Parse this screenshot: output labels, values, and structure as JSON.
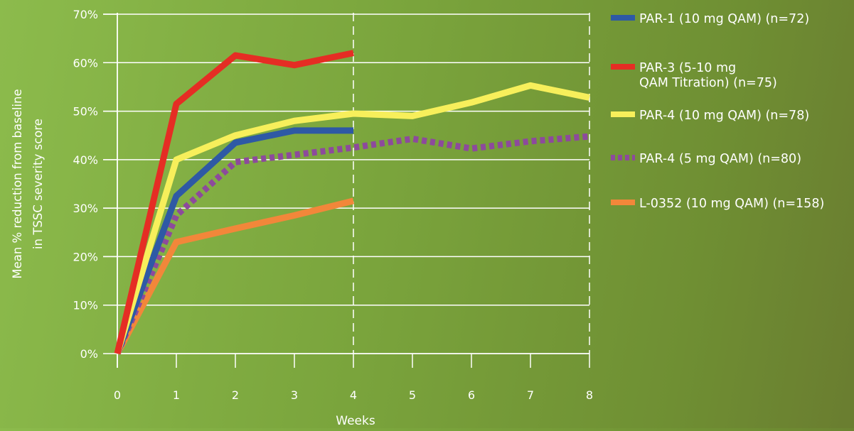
{
  "chart_data": {
    "type": "line",
    "xlabel": "Weeks",
    "ylabel_lines": [
      "Mean % reduction from baseline",
      "in TSSC severity score"
    ],
    "x_ticks": [
      0,
      1,
      2,
      3,
      4,
      5,
      6,
      7,
      8
    ],
    "y_ticks": [
      "0%",
      "10%",
      "20%",
      "30%",
      "40%",
      "50%",
      "60%",
      "70%"
    ],
    "xlim": [
      0,
      8
    ],
    "ylim": [
      0,
      70
    ],
    "grid": "horizontal",
    "dashed_verticals_at": [
      4,
      8
    ],
    "legend_position": "right",
    "series": [
      {
        "name": "PAR-1 (10 mg QAM) (n=72)",
        "color": "#2e59a5",
        "style": "solid",
        "x": [
          0,
          1,
          2,
          3,
          4
        ],
        "y": [
          0,
          32.5,
          43.5,
          46,
          46
        ]
      },
      {
        "name": "PAR-3 (5-10 mg QAM Titration) (n=75)",
        "legend_lines": [
          "PAR-3 (5-10 mg",
          "QAM Titration) (n=75)"
        ],
        "color": "#e52d24",
        "style": "solid",
        "x": [
          0,
          1,
          2,
          3,
          4
        ],
        "y": [
          0,
          51.5,
          61.5,
          59.5,
          62
        ]
      },
      {
        "name": "PAR-4 (10 mg QAM) (n=78)",
        "color": "#f7ef5b",
        "style": "solid",
        "x": [
          0,
          1,
          2,
          3,
          4,
          5,
          6,
          7,
          8
        ],
        "y": [
          0,
          40,
          45,
          48,
          49.5,
          49,
          51.8,
          55.3,
          52.8
        ]
      },
      {
        "name": "PAR-4 (5 mg QAM) (n=80)",
        "color": "#8d4a9c",
        "style": "dotted",
        "x": [
          0,
          1,
          2,
          3,
          4,
          5,
          6,
          7,
          8
        ],
        "y": [
          0,
          28.5,
          39.5,
          41,
          42.5,
          44.3,
          42.3,
          43.8,
          44.8
        ]
      },
      {
        "name": "L-0352 (10 mg QAM) (n=158)",
        "color": "#f2873a",
        "style": "solid",
        "x": [
          0,
          1,
          2,
          3,
          4
        ],
        "y": [
          0,
          23,
          25.8,
          28.5,
          31.5
        ]
      }
    ]
  }
}
